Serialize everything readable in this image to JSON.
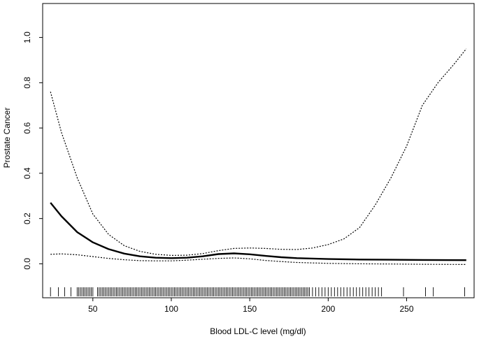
{
  "chart_data": {
    "type": "line",
    "title": "",
    "xlabel": "Blood LDL-C level (mg/dl)",
    "ylabel": "Prostate Cancer",
    "xlim": [
      18,
      293
    ],
    "ylim": [
      -0.15,
      1.15
    ],
    "xticks": [
      50,
      100,
      150,
      200,
      250
    ],
    "yticks": [
      0.0,
      0.2,
      0.4,
      0.6,
      0.8,
      1.0
    ],
    "xtick_labels": [
      "50",
      "100",
      "150",
      "200",
      "250"
    ],
    "ytick_labels": [
      "0.0",
      "0.2",
      "0.4",
      "0.6",
      "0.8",
      "1.0"
    ],
    "grid": false,
    "legend": false,
    "series": [
      {
        "role": "estimate",
        "style": "solid",
        "x": [
          23,
          30,
          40,
          50,
          60,
          70,
          80,
          90,
          100,
          110,
          120,
          130,
          140,
          150,
          160,
          170,
          180,
          200,
          220,
          240,
          260,
          288
        ],
        "y": [
          0.27,
          0.21,
          0.14,
          0.095,
          0.065,
          0.045,
          0.033,
          0.027,
          0.025,
          0.027,
          0.033,
          0.043,
          0.046,
          0.042,
          0.035,
          0.029,
          0.025,
          0.021,
          0.019,
          0.018,
          0.017,
          0.016
        ]
      },
      {
        "role": "upper_ci",
        "style": "dotted",
        "x": [
          23,
          30,
          40,
          50,
          60,
          70,
          80,
          90,
          100,
          110,
          120,
          130,
          140,
          150,
          160,
          170,
          180,
          190,
          200,
          210,
          220,
          230,
          240,
          250,
          260,
          270,
          280,
          288
        ],
        "y": [
          0.76,
          0.58,
          0.38,
          0.22,
          0.13,
          0.08,
          0.055,
          0.042,
          0.037,
          0.038,
          0.045,
          0.058,
          0.068,
          0.07,
          0.068,
          0.064,
          0.063,
          0.07,
          0.085,
          0.11,
          0.16,
          0.26,
          0.38,
          0.52,
          0.7,
          0.8,
          0.88,
          0.95
        ]
      },
      {
        "role": "lower_ci",
        "style": "dotted",
        "x": [
          23,
          30,
          40,
          50,
          60,
          70,
          80,
          90,
          100,
          110,
          120,
          130,
          140,
          150,
          160,
          170,
          180,
          200,
          220,
          240,
          260,
          288
        ],
        "y": [
          0.042,
          0.044,
          0.04,
          0.032,
          0.024,
          0.018,
          0.014,
          0.013,
          0.013,
          0.016,
          0.02,
          0.024,
          0.026,
          0.022,
          0.015,
          0.01,
          0.006,
          0.002,
          0.0,
          -0.001,
          -0.002,
          -0.003
        ]
      }
    ],
    "rug": {
      "x": [
        23,
        28,
        32,
        36,
        40,
        41,
        42,
        43,
        44,
        45,
        46,
        47,
        48,
        49,
        50,
        53,
        54,
        55,
        56,
        57,
        58,
        59,
        60,
        61,
        62,
        63,
        64,
        65,
        66,
        67,
        68,
        69,
        70,
        71,
        72,
        73,
        74,
        75,
        76,
        77,
        78,
        79,
        80,
        81,
        82,
        83,
        84,
        85,
        86,
        87,
        88,
        89,
        90,
        91,
        92,
        93,
        94,
        95,
        96,
        97,
        98,
        99,
        100,
        101,
        102,
        103,
        104,
        105,
        106,
        107,
        108,
        109,
        110,
        111,
        112,
        113,
        114,
        115,
        116,
        117,
        118,
        119,
        120,
        121,
        122,
        123,
        124,
        125,
        126,
        127,
        128,
        129,
        130,
        131,
        132,
        133,
        134,
        135,
        136,
        137,
        138,
        139,
        140,
        141,
        142,
        143,
        144,
        145,
        146,
        147,
        148,
        149,
        150,
        151,
        152,
        153,
        154,
        155,
        156,
        157,
        158,
        159,
        160,
        161,
        162,
        163,
        164,
        165,
        166,
        167,
        168,
        169,
        170,
        171,
        172,
        173,
        174,
        175,
        176,
        177,
        178,
        179,
        180,
        181,
        182,
        183,
        184,
        185,
        186,
        187,
        188,
        190,
        192,
        194,
        196,
        198,
        200,
        202,
        204,
        206,
        208,
        210,
        212,
        214,
        216,
        218,
        220,
        222,
        224,
        226,
        228,
        230,
        232,
        234,
        248,
        262,
        267,
        287
      ]
    }
  }
}
